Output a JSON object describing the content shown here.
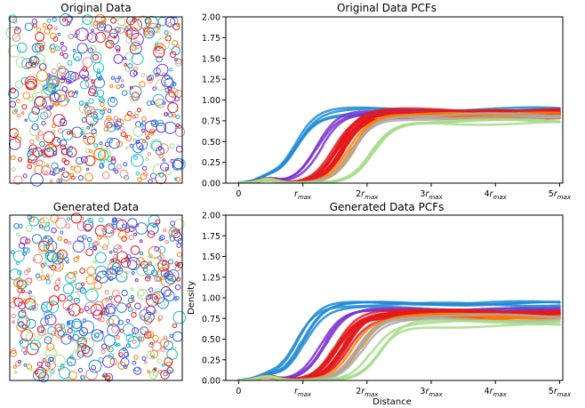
{
  "panels": {
    "orig_scatter_title": "Original Data",
    "gen_scatter_title": "Generated Data"
  },
  "chart_data": [
    {
      "type": "line",
      "title": "Original Data PCFs",
      "xlabel": "",
      "ylabel": "",
      "xlim": [
        -0.2,
        5.05
      ],
      "ylim": [
        0,
        2.0
      ],
      "x_ticks": [
        0,
        1,
        2,
        3,
        4,
        5
      ],
      "x_tick_labels": [
        "0",
        "r_max",
        "2r_max",
        "3r_max",
        "4r_max",
        "5r_max"
      ],
      "y_ticks": [
        0.0,
        0.25,
        0.5,
        0.75,
        1.0,
        1.25,
        1.5,
        1.75,
        2.0
      ],
      "y_tick_labels": [
        "0.00",
        "0.25",
        "0.50",
        "0.75",
        "1.00",
        "1.25",
        "1.50",
        "1.75",
        "2.00"
      ],
      "series_groups": [
        {
          "color": "#1f8ad6",
          "count": 4,
          "onset": 0.85,
          "plateau": 0.86,
          "spread": 0.1
        },
        {
          "color": "#7b2fd0",
          "count": 3,
          "onset": 1.25,
          "plateau": 0.86,
          "spread": 0.1
        },
        {
          "color": "#e31a1c",
          "count": 14,
          "onset": 1.55,
          "plateau": 0.84,
          "spread": 0.25
        },
        {
          "color": "#ff7f00",
          "count": 4,
          "onset": 1.75,
          "plateau": 0.8,
          "spread": 0.2
        },
        {
          "color": "#aaaaaa",
          "count": 3,
          "onset": 1.85,
          "plateau": 0.8,
          "spread": 0.2
        },
        {
          "color": "#a6dc8a",
          "count": 3,
          "onset": 2.1,
          "plateau": 0.74,
          "spread": 0.2
        }
      ]
    },
    {
      "type": "line",
      "title": "Generated Data PCFs",
      "xlabel": "Distance",
      "ylabel": "Density",
      "xlim": [
        -0.2,
        5.05
      ],
      "ylim": [
        0,
        2.0
      ],
      "x_ticks": [
        0,
        1,
        2,
        3,
        4,
        5
      ],
      "x_tick_labels": [
        "0",
        "r_max",
        "2r_max",
        "3r_max",
        "4r_max",
        "5r_max"
      ],
      "y_ticks": [
        0.0,
        0.25,
        0.5,
        0.75,
        1.0,
        1.25,
        1.5,
        1.75,
        2.0
      ],
      "y_tick_labels": [
        "0.00",
        "0.25",
        "0.50",
        "0.75",
        "1.00",
        "1.25",
        "1.50",
        "1.75",
        "2.00"
      ],
      "series_groups": [
        {
          "color": "#1f8ad6",
          "count": 5,
          "onset": 0.95,
          "plateau": 0.9,
          "spread": 0.15
        },
        {
          "color": "#7b2fd0",
          "count": 3,
          "onset": 1.3,
          "plateau": 0.86,
          "spread": 0.1
        },
        {
          "color": "#e31a1c",
          "count": 14,
          "onset": 1.6,
          "plateau": 0.8,
          "spread": 0.25
        },
        {
          "color": "#ff7f00",
          "count": 4,
          "onset": 1.8,
          "plateau": 0.76,
          "spread": 0.2
        },
        {
          "color": "#aaaaaa",
          "count": 3,
          "onset": 1.9,
          "plateau": 0.76,
          "spread": 0.2
        },
        {
          "color": "#a6dc8a",
          "count": 3,
          "onset": 2.15,
          "plateau": 0.68,
          "spread": 0.2
        }
      ]
    }
  ]
}
